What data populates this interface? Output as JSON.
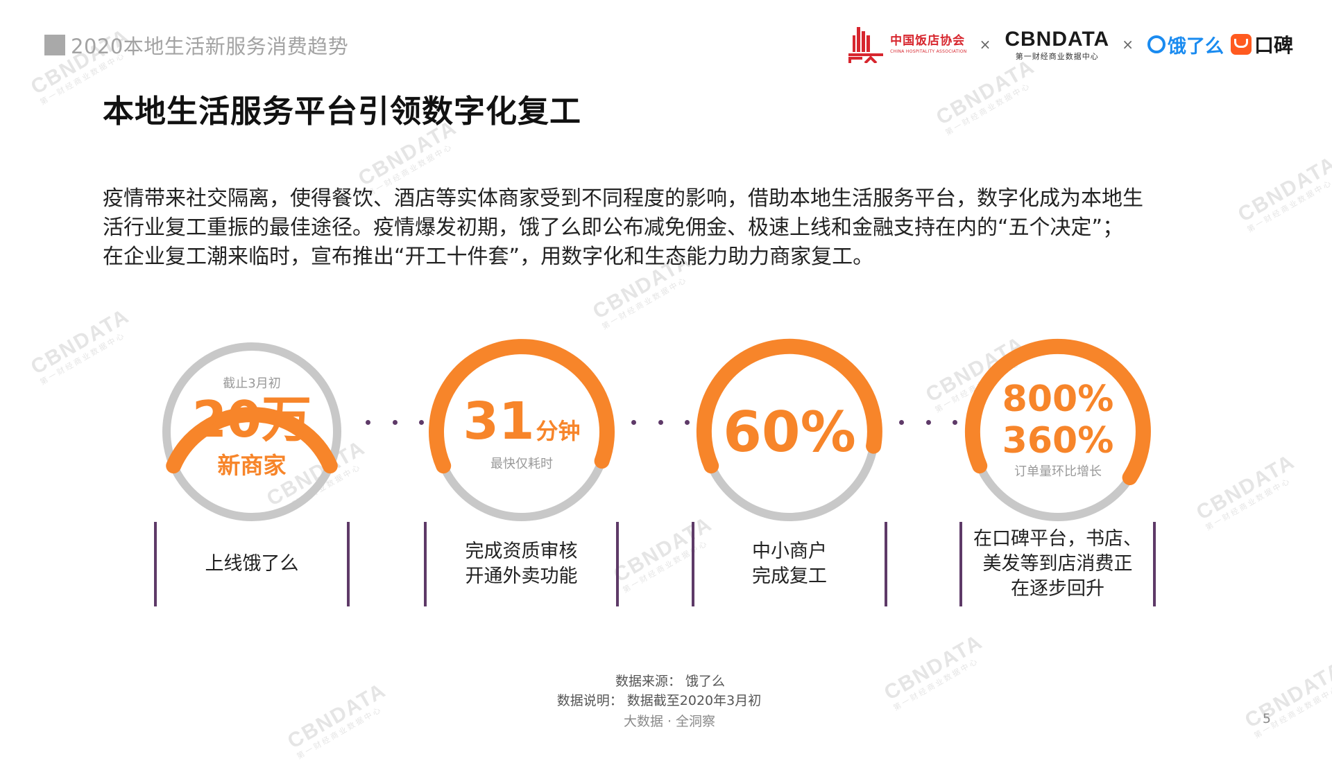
{
  "header": {
    "report_title": "2020本地生活新服务消费趋势"
  },
  "logos": {
    "cha_cn": "中国饭店协会",
    "cha_en": "CHINA HOSPITALITY ASSOCIATION",
    "times_1": "×",
    "cbndata": "CBNDATA",
    "cbndata_sub": "第一财经商业数据中心",
    "times_2": "×",
    "eleme": "饿了么",
    "koubei": "口碑",
    "colors": {
      "cha_red": "#d7262e",
      "eleme_blue": "#1a8bf0",
      "koubei_orange": "#ff5a1f"
    }
  },
  "title": "本地生活服务平台引领数字化复工",
  "intro": {
    "line1": "疫情带来社交隔离，使得餐饮、酒店等实体商家受到不同程度的影响，借助本地生活服务平台，数字化成为本地生",
    "line2": "活行业复工重振的最佳途径。疫情爆发初期，饿了么即公布减免佣金、极速上线和金融支持在内的“五个决定”；",
    "line3": "在企业复工潮来临时，宣布推出“开工十件套”，用数字化和生态能力助力商家复工。"
  },
  "metrics": [
    {
      "top": "截止3月初",
      "value": "20万",
      "label": "新商家",
      "desc_lines": [
        "上线饿了么"
      ]
    },
    {
      "value": "31",
      "unit": "分钟",
      "sub": "最快仅耗时",
      "desc_lines": [
        "完成资质审核",
        "开通外卖功能"
      ]
    },
    {
      "value": "60%",
      "desc_lines": [
        "中小商户",
        "完成复工"
      ]
    },
    {
      "value1": "800%",
      "value2": "360%",
      "sub": "订单量环比增长",
      "desc_lines": [
        "在口碑平台，书店、",
        "美发等到店消费正",
        "在逐步回升"
      ]
    }
  ],
  "colors": {
    "accent_orange": "#f7852a",
    "ring_grey": "#c8c8c8",
    "bracket_purple": "#5e3a68"
  },
  "footer": {
    "source": "数据来源：  饿了么",
    "note": "数据说明：  数据截至2020年3月初",
    "tagline": "大数据 · 全洞察",
    "page": "5"
  }
}
